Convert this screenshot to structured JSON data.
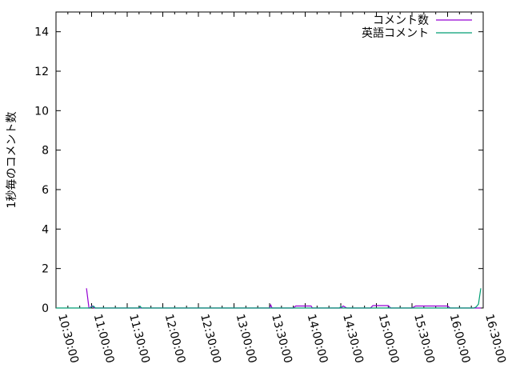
{
  "chart_data": {
    "type": "line",
    "title": "",
    "xlabel": "",
    "ylabel": "1秒毎のコメント数",
    "xlim": [
      "10:30:00",
      "16:30:00"
    ],
    "ylim": [
      0,
      15
    ],
    "yticks": [
      0,
      2,
      4,
      6,
      8,
      10,
      12,
      14
    ],
    "xticks": [
      "10:30:00",
      "11:00:00",
      "11:30:00",
      "12:00:00",
      "12:30:00",
      "13:00:00",
      "13:30:00",
      "14:00:00",
      "14:30:00",
      "15:00:00",
      "15:30:00",
      "16:00:00",
      "16:30:00"
    ],
    "grid": false,
    "legend": "top-right",
    "series": [
      {
        "name": "コメント数",
        "color": "#9400d3",
        "x": [
          "10:55:40",
          "10:57:45",
          "10:58:30",
          "11:00:00",
          "11:01:00",
          "11:02:00",
          "13:30:00",
          "13:31:00",
          "13:32:00",
          "13:50:00",
          "13:52:00",
          "14:05:00",
          "14:06:00",
          "14:30:00",
          "14:32:00",
          "14:35:00",
          "14:55:00",
          "14:57:00",
          "15:10:00",
          "15:12:00",
          "15:30:00",
          "15:33:00",
          "16:00:00",
          "16:02:00",
          "16:27:59"
        ],
        "values": [
          1,
          0,
          0,
          0.1,
          0.1,
          0,
          0,
          0.15,
          0,
          0,
          0.1,
          0.1,
          0,
          0,
          0.1,
          0,
          0,
          0.12,
          0.12,
          0,
          0,
          0.1,
          0.1,
          0,
          0
        ]
      },
      {
        "name": "英語コメント",
        "color": "#009e73",
        "x": [
          "10:30:00",
          "10:59:00",
          "11:00:30",
          "11:02:00",
          "11:03:00",
          "11:40:00",
          "11:41:00",
          "11:42:00",
          "14:29:00",
          "14:30:00",
          "14:31:00",
          "16:22:00",
          "16:24:00",
          "16:26:00",
          "16:27:59"
        ],
        "values": [
          0,
          0,
          0.08,
          0.08,
          0,
          0,
          0.08,
          0,
          0,
          0.08,
          0,
          0,
          0.05,
          0.2,
          1
        ]
      }
    ]
  }
}
